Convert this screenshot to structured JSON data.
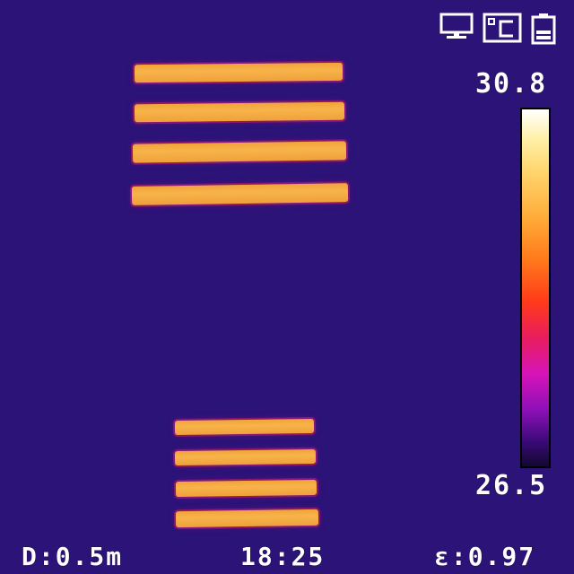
{
  "status_bar": {
    "icons": [
      "monitor-icon",
      "celsius-unit-icon",
      "battery-icon"
    ]
  },
  "temperature_scale": {
    "max": "30.8",
    "min": "26.5",
    "palette": "iron",
    "colors": {
      "background": "#2c1378",
      "hot_object": "#f2a33a",
      "scale_top": "#ffffff",
      "scale_bottom": "#120830"
    }
  },
  "readouts": {
    "distance": "D:0.5m",
    "time": "18:25",
    "emissivity": "ε:0.97"
  }
}
